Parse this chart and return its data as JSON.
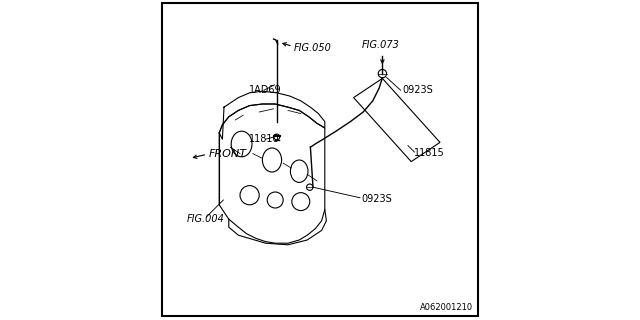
{
  "bg_color": "#ffffff",
  "border_color": "#000000",
  "line_color": "#000000",
  "text_color": "#000000",
  "figure_code": "A062001210",
  "labels": {
    "fig050": "FIG.050",
    "fig073": "FIG.073",
    "fig004": "FIG.004",
    "part_1ad69": "1AD69",
    "part_11810": "11810",
    "part_11815": "11815",
    "part_0923s_top": "0923S",
    "part_0923s_bot": "0923S",
    "front": "FRONT"
  }
}
